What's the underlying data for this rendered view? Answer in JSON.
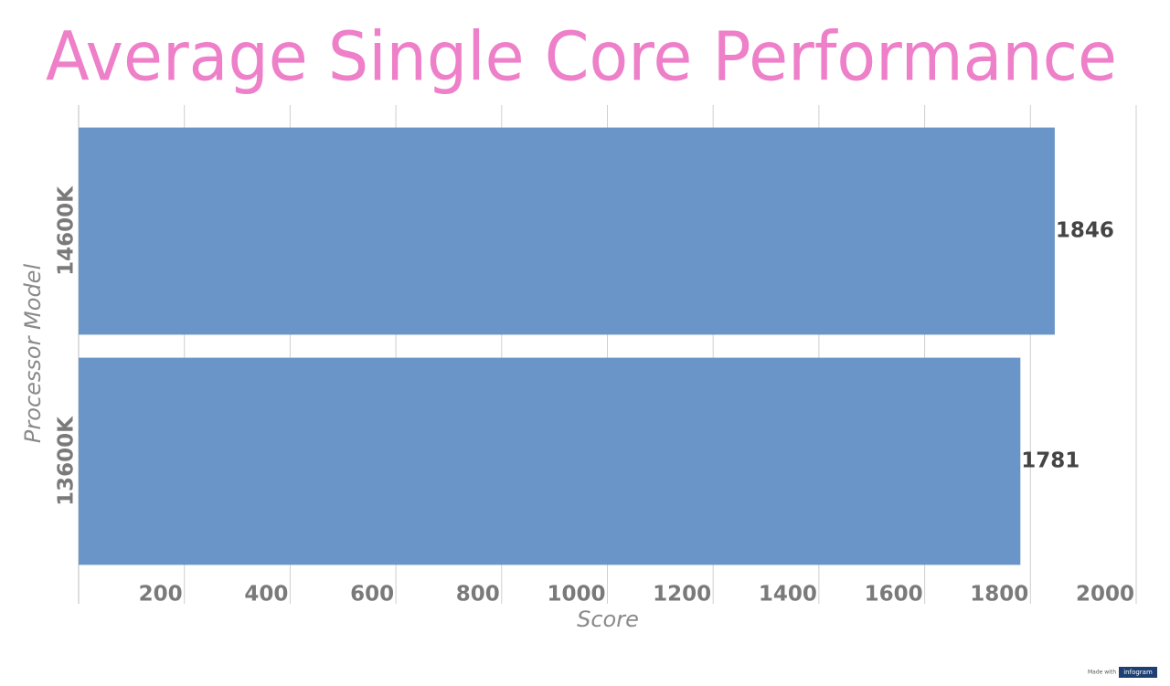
{
  "chart_data": {
    "type": "bar",
    "orientation": "horizontal",
    "title": "Average Single Core Performance",
    "x_label": "Score",
    "y_label": "Processor Model",
    "categories": [
      "14600K",
      "13600K"
    ],
    "values": [
      1846,
      1781
    ],
    "color": "#6a95c8",
    "xlim": [
      0,
      2000
    ],
    "xticks": [
      200,
      400,
      600,
      800,
      1000,
      1200,
      1400,
      1600,
      1800,
      2000
    ],
    "grid": true
  },
  "footer": {
    "made_with": "Made with",
    "brand": "infogram"
  }
}
